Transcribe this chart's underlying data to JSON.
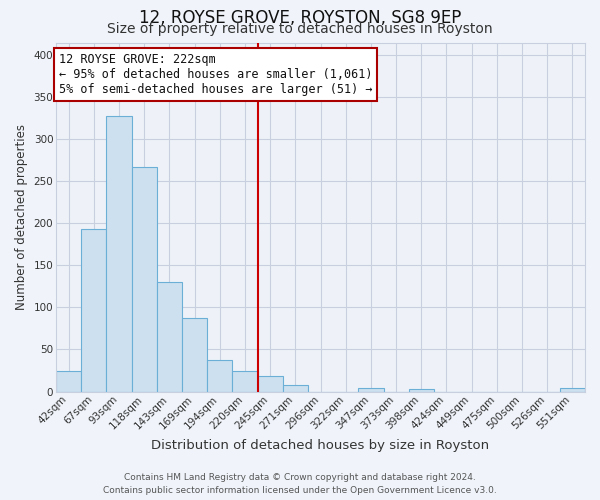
{
  "title": "12, ROYSE GROVE, ROYSTON, SG8 9EP",
  "subtitle": "Size of property relative to detached houses in Royston",
  "xlabel": "Distribution of detached houses by size in Royston",
  "ylabel": "Number of detached properties",
  "bar_labels": [
    "42sqm",
    "67sqm",
    "93sqm",
    "118sqm",
    "143sqm",
    "169sqm",
    "194sqm",
    "220sqm",
    "245sqm",
    "271sqm",
    "296sqm",
    "322sqm",
    "347sqm",
    "373sqm",
    "398sqm",
    "424sqm",
    "449sqm",
    "475sqm",
    "500sqm",
    "526sqm",
    "551sqm"
  ],
  "bar_heights": [
    25,
    193,
    328,
    267,
    130,
    87,
    38,
    25,
    18,
    8,
    0,
    0,
    4,
    0,
    3,
    0,
    0,
    0,
    0,
    0,
    4
  ],
  "bar_fill_color": "#cce0f0",
  "bar_edge_color": "#6baed6",
  "vline_color": "#cc0000",
  "annotation_title": "12 ROYSE GROVE: 222sqm",
  "annotation_line1": "← 95% of detached houses are smaller (1,061)",
  "annotation_line2": "5% of semi-detached houses are larger (51) →",
  "annotation_box_edge": "#aa0000",
  "ylim": [
    0,
    415
  ],
  "yticks": [
    0,
    50,
    100,
    150,
    200,
    250,
    300,
    350,
    400
  ],
  "background_color": "#f0f4fa",
  "plot_bg_color": "#eef2f8",
  "grid_color": "#c8d0e0",
  "footer_line1": "Contains HM Land Registry data © Crown copyright and database right 2024.",
  "footer_line2": "Contains public sector information licensed under the Open Government Licence v3.0.",
  "title_fontsize": 12,
  "subtitle_fontsize": 10,
  "xlabel_fontsize": 9.5,
  "ylabel_fontsize": 8.5,
  "tick_fontsize": 7.5,
  "annotation_fontsize": 8.5,
  "footer_fontsize": 6.5
}
